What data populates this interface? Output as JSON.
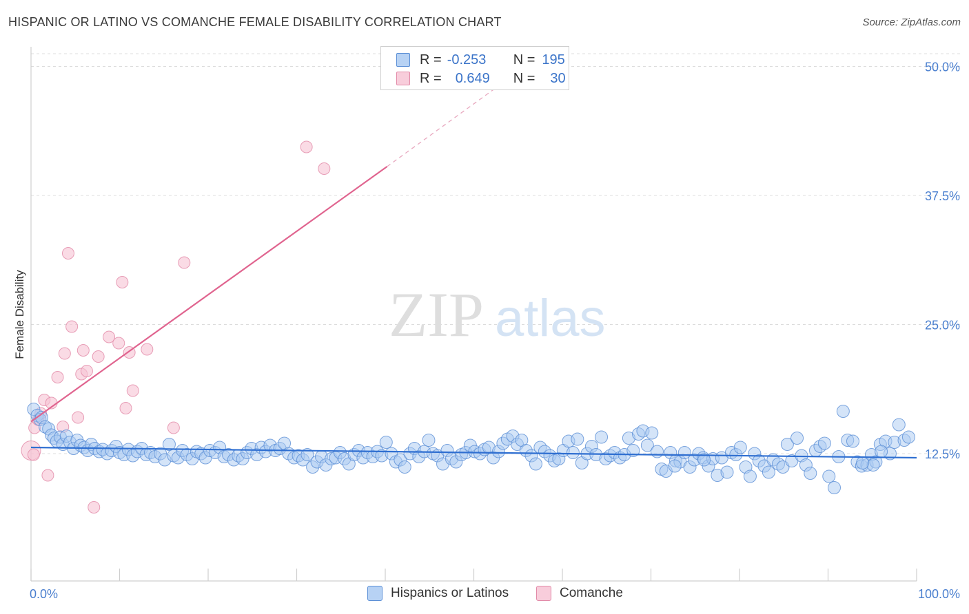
{
  "title": "HISPANIC OR LATINO VS COMANCHE FEMALE DISABILITY CORRELATION CHART",
  "source": "Source: ZipAtlas.com",
  "watermark": {
    "zip": "ZIP",
    "atlas": "atlas"
  },
  "legend_top": [
    {
      "r_label": "R =",
      "r_value": "-0.253",
      "n_label": "N =",
      "n_value": "195"
    },
    {
      "r_label": "R =",
      "r_value": "0.649",
      "n_label": "N =",
      "n_value": "30"
    }
  ],
  "colors": {
    "blue_fill": "#a9c9f2",
    "blue_stroke": "#5b8fd6",
    "blue_line": "#2f6fd1",
    "pink_fill": "#f6c3d4",
    "pink_stroke": "#e28aa8",
    "pink_line": "#e0648f",
    "axis_text": "#4a7fcf"
  },
  "chart_data": {
    "type": "scatter",
    "title": "HISPANIC OR LATINO VS COMANCHE FEMALE DISABILITY CORRELATION CHART",
    "xlabel": "",
    "ylabel": "Female Disability",
    "xlim": [
      0,
      100
    ],
    "ylim": [
      0,
      52.5
    ],
    "x_tick_labels": [
      "0.0%",
      "100.0%"
    ],
    "y_ticks": [
      12.5,
      25.0,
      37.5,
      50.0
    ],
    "y_tick_labels": [
      "12.5%",
      "25.0%",
      "37.5%",
      "50.0%"
    ],
    "legend": [
      "Hispanics or Latinos",
      "Comanche"
    ],
    "series": [
      {
        "name": "Hispanics or Latinos",
        "trend": {
          "x": [
            0,
            100
          ],
          "y": [
            13.1,
            12.1
          ]
        },
        "points": [
          [
            0.3,
            16.8
          ],
          [
            0.7,
            16.2
          ],
          [
            1.0,
            15.8
          ],
          [
            1.2,
            16.0
          ],
          [
            1.6,
            15.1
          ],
          [
            2.0,
            14.9
          ],
          [
            2.3,
            14.3
          ],
          [
            2.6,
            14.0
          ],
          [
            2.9,
            13.7
          ],
          [
            3.3,
            14.1
          ],
          [
            3.6,
            13.4
          ],
          [
            4.0,
            14.2
          ],
          [
            4.4,
            13.6
          ],
          [
            4.8,
            13.0
          ],
          [
            5.2,
            13.8
          ],
          [
            5.6,
            13.3
          ],
          [
            6.0,
            13.1
          ],
          [
            6.4,
            12.8
          ],
          [
            6.8,
            13.4
          ],
          [
            7.2,
            13.0
          ],
          [
            7.7,
            12.7
          ],
          [
            8.1,
            12.9
          ],
          [
            8.6,
            12.5
          ],
          [
            9.1,
            12.8
          ],
          [
            9.6,
            13.2
          ],
          [
            10.0,
            12.6
          ],
          [
            10.5,
            12.4
          ],
          [
            11.0,
            12.9
          ],
          [
            11.5,
            12.3
          ],
          [
            12.0,
            12.7
          ],
          [
            12.5,
            13.0
          ],
          [
            13.0,
            12.4
          ],
          [
            13.5,
            12.6
          ],
          [
            14.0,
            12.2
          ],
          [
            14.6,
            12.5
          ],
          [
            15.1,
            11.9
          ],
          [
            15.6,
            13.4
          ],
          [
            16.1,
            12.3
          ],
          [
            16.6,
            12.1
          ],
          [
            17.1,
            12.8
          ],
          [
            17.6,
            12.4
          ],
          [
            18.2,
            12.0
          ],
          [
            18.7,
            12.7
          ],
          [
            19.2,
            12.5
          ],
          [
            19.7,
            12.1
          ],
          [
            20.2,
            12.8
          ],
          [
            20.8,
            12.6
          ],
          [
            21.3,
            13.1
          ],
          [
            21.8,
            12.2
          ],
          [
            22.3,
            12.4
          ],
          [
            22.9,
            11.9
          ],
          [
            23.4,
            12.3
          ],
          [
            23.9,
            12.0
          ],
          [
            24.4,
            12.6
          ],
          [
            24.9,
            13.0
          ],
          [
            25.5,
            12.4
          ],
          [
            26.0,
            13.1
          ],
          [
            26.5,
            12.7
          ],
          [
            27.0,
            13.3
          ],
          [
            27.6,
            12.8
          ],
          [
            28.1,
            13.0
          ],
          [
            28.6,
            13.5
          ],
          [
            29.1,
            12.5
          ],
          [
            29.7,
            12.1
          ],
          [
            30.2,
            12.3
          ],
          [
            30.7,
            11.9
          ],
          [
            31.2,
            12.4
          ],
          [
            31.8,
            11.2
          ],
          [
            32.3,
            11.7
          ],
          [
            32.8,
            12.2
          ],
          [
            33.3,
            11.4
          ],
          [
            33.9,
            12.0
          ],
          [
            34.4,
            12.1
          ],
          [
            34.9,
            12.6
          ],
          [
            35.4,
            12.0
          ],
          [
            35.9,
            11.5
          ],
          [
            36.5,
            12.4
          ],
          [
            37.0,
            12.8
          ],
          [
            37.5,
            12.1
          ],
          [
            38.0,
            12.6
          ],
          [
            38.6,
            12.2
          ],
          [
            39.1,
            12.7
          ],
          [
            39.6,
            12.3
          ],
          [
            40.1,
            13.6
          ],
          [
            40.7,
            12.5
          ],
          [
            41.2,
            11.7
          ],
          [
            41.7,
            11.9
          ],
          [
            42.2,
            11.2
          ],
          [
            42.8,
            12.5
          ],
          [
            43.3,
            13.0
          ],
          [
            43.8,
            12.2
          ],
          [
            44.4,
            12.7
          ],
          [
            44.9,
            13.8
          ],
          [
            45.4,
            12.5
          ],
          [
            45.9,
            12.3
          ],
          [
            46.5,
            11.5
          ],
          [
            47.0,
            12.8
          ],
          [
            47.5,
            12.0
          ],
          [
            48.0,
            11.7
          ],
          [
            48.6,
            12.4
          ],
          [
            49.1,
            12.6
          ],
          [
            49.6,
            13.3
          ],
          [
            50.1,
            12.7
          ],
          [
            50.7,
            12.5
          ],
          [
            51.2,
            12.9
          ],
          [
            51.7,
            13.1
          ],
          [
            52.2,
            12.1
          ],
          [
            52.8,
            12.7
          ],
          [
            53.3,
            13.5
          ],
          [
            53.8,
            13.9
          ],
          [
            54.4,
            14.2
          ],
          [
            54.9,
            13.4
          ],
          [
            55.4,
            13.8
          ],
          [
            55.9,
            12.8
          ],
          [
            56.5,
            12.3
          ],
          [
            57.0,
            11.5
          ],
          [
            57.5,
            13.1
          ],
          [
            58.0,
            12.7
          ],
          [
            58.6,
            12.3
          ],
          [
            59.1,
            11.8
          ],
          [
            59.6,
            12.0
          ],
          [
            60.1,
            12.8
          ],
          [
            60.7,
            13.7
          ],
          [
            61.2,
            12.6
          ],
          [
            61.7,
            13.9
          ],
          [
            62.2,
            11.6
          ],
          [
            62.8,
            12.5
          ],
          [
            63.3,
            13.2
          ],
          [
            63.8,
            12.4
          ],
          [
            64.4,
            14.1
          ],
          [
            64.9,
            12.0
          ],
          [
            65.4,
            12.3
          ],
          [
            65.9,
            12.6
          ],
          [
            66.5,
            12.1
          ],
          [
            67.0,
            12.4
          ],
          [
            67.5,
            14.0
          ],
          [
            68.0,
            12.8
          ],
          [
            68.6,
            14.4
          ],
          [
            69.1,
            14.7
          ],
          [
            69.6,
            13.3
          ],
          [
            70.1,
            14.5
          ],
          [
            70.7,
            12.7
          ],
          [
            71.2,
            11.0
          ],
          [
            71.7,
            10.8
          ],
          [
            72.2,
            12.6
          ],
          [
            72.8,
            11.8
          ],
          [
            73.3,
            11.7
          ],
          [
            73.8,
            12.6
          ],
          [
            74.4,
            11.2
          ],
          [
            74.9,
            11.9
          ],
          [
            75.4,
            12.5
          ],
          [
            75.9,
            12.1
          ],
          [
            76.5,
            11.3
          ],
          [
            77.0,
            12.0
          ],
          [
            77.5,
            10.4
          ],
          [
            78.0,
            12.1
          ],
          [
            78.6,
            10.7
          ],
          [
            79.1,
            12.6
          ],
          [
            79.6,
            12.4
          ],
          [
            80.1,
            13.1
          ],
          [
            80.7,
            11.2
          ],
          [
            81.2,
            10.3
          ],
          [
            81.7,
            12.5
          ],
          [
            82.2,
            11.8
          ],
          [
            82.8,
            11.3
          ],
          [
            83.3,
            10.7
          ],
          [
            83.8,
            11.9
          ],
          [
            84.4,
            11.5
          ],
          [
            84.9,
            11.2
          ],
          [
            85.4,
            13.4
          ],
          [
            85.9,
            11.8
          ],
          [
            86.5,
            14.0
          ],
          [
            87.0,
            12.3
          ],
          [
            87.5,
            11.4
          ],
          [
            88.0,
            10.6
          ],
          [
            88.6,
            12.8
          ],
          [
            89.1,
            13.2
          ],
          [
            89.6,
            13.5
          ],
          [
            90.1,
            10.3
          ],
          [
            90.7,
            9.2
          ],
          [
            91.2,
            12.2
          ],
          [
            91.7,
            16.6
          ],
          [
            92.2,
            13.8
          ],
          [
            92.8,
            13.7
          ],
          [
            93.3,
            11.7
          ],
          [
            93.8,
            11.3
          ],
          [
            94.4,
            11.4
          ],
          [
            94.9,
            12.4
          ],
          [
            95.4,
            11.7
          ],
          [
            95.9,
            13.4
          ],
          [
            96.5,
            13.7
          ],
          [
            97.0,
            12.5
          ],
          [
            97.5,
            13.6
          ],
          [
            98.0,
            15.3
          ],
          [
            98.6,
            13.8
          ],
          [
            99.1,
            14.1
          ],
          [
            96.0,
            12.7
          ],
          [
            95.1,
            11.4
          ],
          [
            93.9,
            11.6
          ],
          [
            72.7,
            11.3
          ],
          [
            76.0,
            11.9
          ]
        ]
      },
      {
        "name": "Comanche",
        "trend": {
          "x": [
            0,
            40.2
          ],
          "y": [
            15.6,
            40.3
          ]
        },
        "trend_extension": {
          "x": [
            40.2,
            56
          ],
          "y": [
            40.3,
            50.1
          ]
        },
        "points": [
          [
            0.0,
            12.8
          ],
          [
            0.4,
            15.0
          ],
          [
            0.8,
            15.8
          ],
          [
            1.1,
            16.4
          ],
          [
            1.5,
            17.7
          ],
          [
            1.9,
            10.4
          ],
          [
            2.3,
            17.4
          ],
          [
            3.0,
            19.9
          ],
          [
            3.6,
            15.1
          ],
          [
            3.8,
            22.2
          ],
          [
            4.2,
            31.9
          ],
          [
            4.6,
            24.8
          ],
          [
            5.3,
            16.0
          ],
          [
            5.7,
            20.2
          ],
          [
            5.9,
            22.5
          ],
          [
            6.3,
            20.5
          ],
          [
            7.1,
            7.3
          ],
          [
            7.6,
            21.9
          ],
          [
            8.8,
            23.8
          ],
          [
            9.9,
            23.2
          ],
          [
            10.3,
            29.1
          ],
          [
            10.7,
            16.9
          ],
          [
            11.1,
            22.3
          ],
          [
            11.5,
            18.6
          ],
          [
            13.1,
            22.6
          ],
          [
            16.1,
            15.0
          ],
          [
            17.3,
            31.0
          ],
          [
            31.1,
            42.2
          ],
          [
            33.1,
            40.1
          ],
          [
            0.3,
            12.4
          ]
        ]
      }
    ]
  }
}
